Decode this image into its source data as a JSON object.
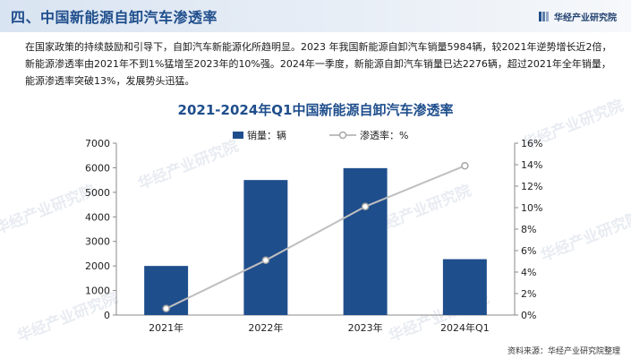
{
  "header": {
    "title": "四、中国新能源自卸汽车渗透率",
    "brand": "华经产业研究院"
  },
  "intro": "在国家政策的持续鼓励和引导下，自卸汽车新能源化所趋明显。2023 年我国新能源自卸汽车销量5984辆，较2021年逆势增长近2倍，新能源渗透率由2021年不到1%猛增至2023年的10%强。2024年一季度，新能源自卸汽车销量已达2276辆，超过2021年全年销量，能源渗透率突破13%，发展势头迅猛。",
  "watermark": "华经产业研究院",
  "colors": {
    "bar": "#1f4e8c",
    "line": "#bfbfbf",
    "title": "#1f4e8c"
  },
  "chart_data": {
    "type": "bar",
    "title": "2021-2024年Q1中国新能源自卸汽车渗透率",
    "categories": [
      "2021年",
      "2022年",
      "2023年",
      "2024年Q1"
    ],
    "series": [
      {
        "name": "销量：辆",
        "type": "bar",
        "axis": "left",
        "values": [
          2000,
          5500,
          5984,
          2276
        ]
      },
      {
        "name": "渗透率：%",
        "type": "line",
        "axis": "right",
        "values": [
          0.6,
          5.1,
          10.1,
          13.9
        ]
      }
    ],
    "y_left": {
      "min": 0,
      "max": 7000,
      "step": 1000,
      "ticks": [
        "0",
        "1000",
        "2000",
        "3000",
        "4000",
        "5000",
        "6000",
        "7000"
      ]
    },
    "y_right": {
      "min": 0,
      "max": 16,
      "step": 2,
      "ticks": [
        "0%",
        "2%",
        "4%",
        "6%",
        "8%",
        "10%",
        "12%",
        "14%",
        "16%"
      ]
    },
    "grid": false,
    "legend_position": "top-center"
  },
  "footer": {
    "source": "资料来源：华经产业研究院整理"
  }
}
